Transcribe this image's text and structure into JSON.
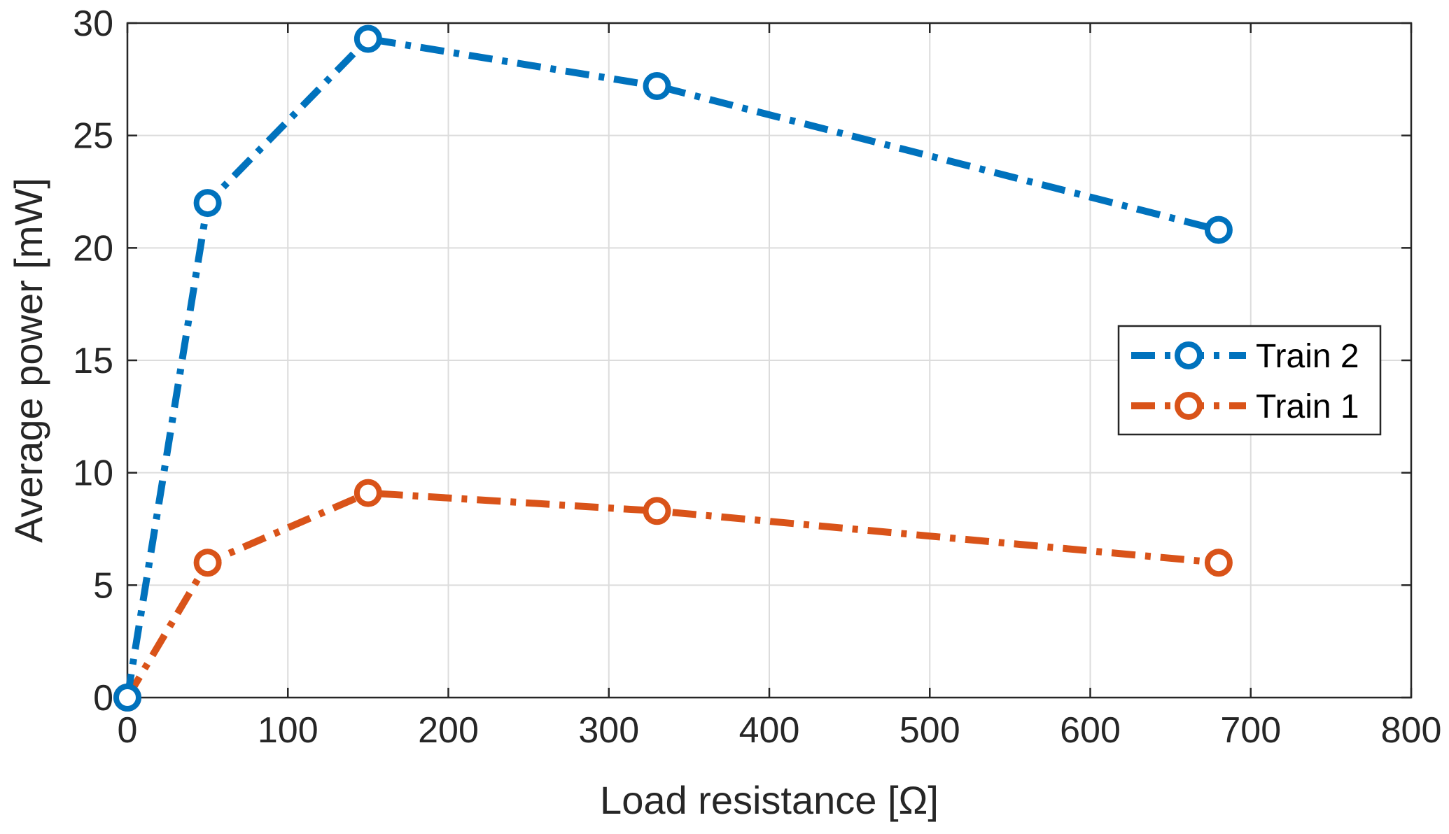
{
  "chart_data": {
    "type": "line",
    "title": "",
    "xlabel": "Load resistance [Ω]",
    "ylabel": "Average power [mW]",
    "xlim": [
      0,
      800
    ],
    "ylim": [
      0,
      30
    ],
    "xticks": [
      "0",
      "100",
      "200",
      "300",
      "400",
      "500",
      "600",
      "700",
      "800"
    ],
    "yticks": [
      "0",
      "5",
      "10",
      "15",
      "20",
      "25",
      "30"
    ],
    "grid": true,
    "legend_position": "right",
    "x": [
      0,
      50,
      150,
      330,
      680
    ],
    "series": [
      {
        "name": "Train 2",
        "color": "#0072BD",
        "values": [
          0,
          22.0,
          29.3,
          27.2,
          20.8
        ]
      },
      {
        "name": "Train 1",
        "color": "#D95319",
        "values": [
          0,
          6.0,
          9.1,
          8.3,
          6.0
        ]
      }
    ]
  }
}
